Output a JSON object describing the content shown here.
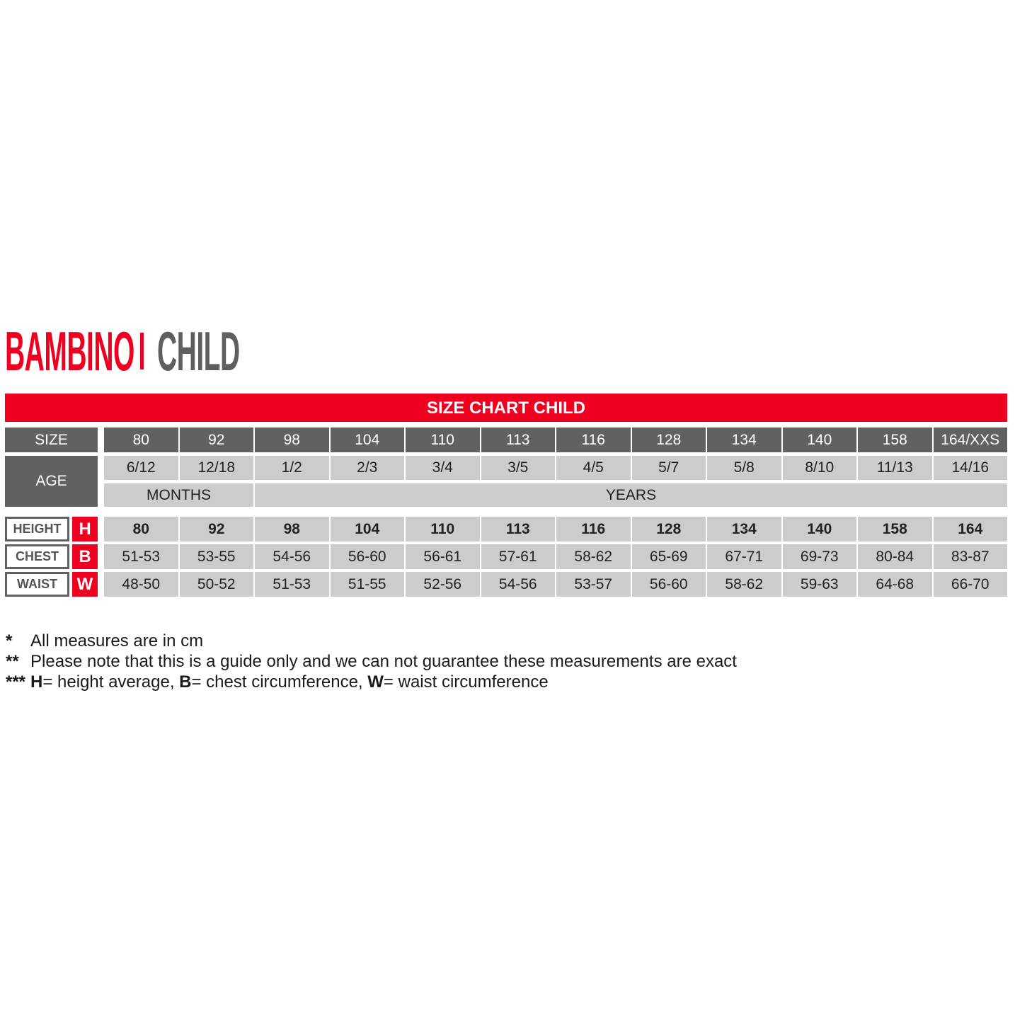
{
  "header": {
    "title_left": "BAMBINO",
    "title_right": "CHILD"
  },
  "banner": "SIZE CHART CHILD",
  "colors": {
    "accent": "#f00020",
    "dark_gray": "#616163",
    "light_gray": "#cbcccd"
  },
  "table": {
    "size_label": "SIZE",
    "age_label": "AGE",
    "sizes": [
      "80",
      "92",
      "98",
      "104",
      "110",
      "113",
      "116",
      "128",
      "134",
      "140",
      "158",
      "164/XXS"
    ],
    "ages": [
      "6/12",
      "12/18",
      "1/2",
      "2/3",
      "3/4",
      "3/5",
      "4/5",
      "5/7",
      "5/8",
      "8/10",
      "11/13",
      "14/16"
    ],
    "age_units": [
      {
        "label": "MONTHS",
        "span": 2
      },
      {
        "label": "YEARS",
        "span": 10
      }
    ],
    "measures": [
      {
        "label": "HEIGHT",
        "code": "H",
        "bold": true,
        "values": [
          "80",
          "92",
          "98",
          "104",
          "110",
          "113",
          "116",
          "128",
          "134",
          "140",
          "158",
          "164"
        ]
      },
      {
        "label": "CHEST",
        "code": "B",
        "bold": false,
        "values": [
          "51-53",
          "53-55",
          "54-56",
          "56-60",
          "56-61",
          "57-61",
          "58-62",
          "65-69",
          "67-71",
          "69-73",
          "80-84",
          "83-87"
        ]
      },
      {
        "label": "WAIST",
        "code": "W",
        "bold": false,
        "values": [
          "48-50",
          "50-52",
          "51-53",
          "51-55",
          "52-56",
          "54-56",
          "53-57",
          "56-60",
          "58-62",
          "59-63",
          "64-68",
          "66-70"
        ]
      }
    ]
  },
  "notes": [
    {
      "mark": "*",
      "parts": [
        {
          "text": "All measures are in cm",
          "bold": false
        }
      ]
    },
    {
      "mark": "**",
      "parts": [
        {
          "text": "Please note that this is a guide only and we can not guarantee these measurements are exact",
          "bold": false
        }
      ]
    },
    {
      "mark": "***",
      "parts": [
        {
          "text": "H",
          "bold": true
        },
        {
          "text": "= height average, ",
          "bold": false
        },
        {
          "text": "B",
          "bold": true
        },
        {
          "text": "= chest circumference, ",
          "bold": false
        },
        {
          "text": "W",
          "bold": true
        },
        {
          "text": "= waist circumference",
          "bold": false
        }
      ]
    }
  ]
}
